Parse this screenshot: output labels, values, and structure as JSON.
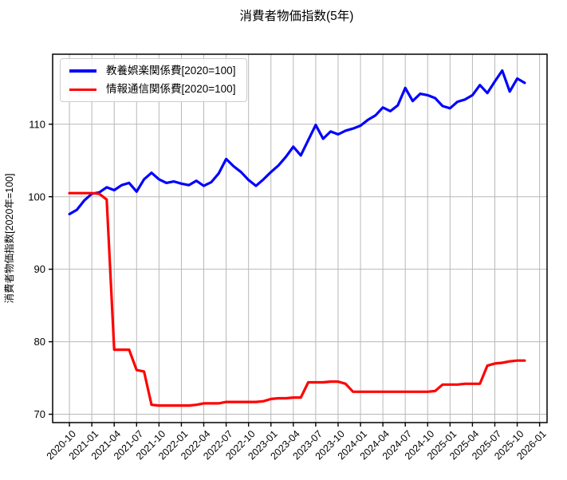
{
  "title": "消費者物価指数(5年)",
  "chart_data": {
    "type": "line",
    "title": "消費者物価指数(5年)",
    "xlabel": "",
    "ylabel": "消費者物価指数[2020年=100]",
    "grid": true,
    "legend_position": "upper left",
    "ylim": [
      68.85,
      119.65
    ],
    "xlim_months": [
      -2.25,
      64.0
    ],
    "y_ticks": [
      70,
      80,
      90,
      100,
      110
    ],
    "x_tick_labels": [
      "2020-10",
      "2021-01",
      "2021-04",
      "2021-07",
      "2021-10",
      "2022-01",
      "2022-04",
      "2022-07",
      "2022-10",
      "2023-01",
      "2023-04",
      "2023-07",
      "2023-10",
      "2024-01",
      "2024-04",
      "2024-07",
      "2024-10",
      "2025-01",
      "2025-04",
      "2025-07",
      "2025-10",
      "2026-01"
    ],
    "x": [
      "2020-10",
      "2020-11",
      "2020-12",
      "2021-01",
      "2021-02",
      "2021-03",
      "2021-04",
      "2021-05",
      "2021-06",
      "2021-07",
      "2021-08",
      "2021-09",
      "2021-10",
      "2021-11",
      "2021-12",
      "2022-01",
      "2022-02",
      "2022-03",
      "2022-04",
      "2022-05",
      "2022-06",
      "2022-07",
      "2022-08",
      "2022-09",
      "2022-10",
      "2022-11",
      "2022-12",
      "2023-01",
      "2023-02",
      "2023-03",
      "2023-04",
      "2023-05",
      "2023-06",
      "2023-07",
      "2023-08",
      "2023-09",
      "2023-10",
      "2023-11",
      "2023-12",
      "2024-01",
      "2024-02",
      "2024-03",
      "2024-04",
      "2024-05",
      "2024-06",
      "2024-07",
      "2024-08",
      "2024-09",
      "2024-10",
      "2024-11",
      "2024-12",
      "2025-01",
      "2025-02",
      "2025-03",
      "2025-04",
      "2025-05",
      "2025-06",
      "2025-07",
      "2025-08",
      "2025-09",
      "2025-10",
      "2025-11"
    ],
    "series": [
      {
        "name": "教養娯楽関係費[2020=100]",
        "color": "#0000ff",
        "values": [
          97.6,
          98.2,
          99.5,
          100.4,
          100.6,
          101.3,
          100.9,
          101.6,
          101.9,
          100.7,
          102.4,
          103.3,
          102.4,
          101.9,
          102.1,
          101.8,
          101.6,
          102.2,
          101.5,
          102.0,
          103.2,
          105.2,
          104.2,
          103.4,
          102.3,
          101.5,
          102.4,
          103.4,
          104.3,
          105.5,
          106.9,
          105.7,
          107.8,
          109.9,
          108.0,
          109.0,
          108.6,
          109.1,
          109.4,
          109.8,
          110.6,
          111.2,
          112.3,
          111.8,
          112.6,
          115.0,
          113.2,
          114.2,
          114.0,
          113.6,
          112.5,
          112.2,
          113.1,
          113.4,
          114.0,
          115.4,
          114.3,
          115.9,
          117.4,
          114.5,
          116.3,
          115.7
        ]
      },
      {
        "name": "情報通信関係費[2020=100]",
        "color": "#ff0000",
        "values": [
          100.5,
          100.5,
          100.5,
          100.5,
          100.4,
          99.6,
          78.9,
          78.9,
          78.9,
          76.1,
          75.9,
          71.3,
          71.2,
          71.2,
          71.2,
          71.2,
          71.2,
          71.3,
          71.5,
          71.5,
          71.5,
          71.7,
          71.7,
          71.7,
          71.7,
          71.7,
          71.8,
          72.1,
          72.2,
          72.2,
          72.3,
          72.3,
          74.4,
          74.4,
          74.4,
          74.5,
          74.5,
          74.2,
          73.1,
          73.1,
          73.1,
          73.1,
          73.1,
          73.1,
          73.1,
          73.1,
          73.1,
          73.1,
          73.1,
          73.2,
          74.1,
          74.1,
          74.1,
          74.2,
          74.2,
          74.2,
          76.7,
          77.0,
          77.1,
          77.3,
          77.4,
          77.4
        ]
      }
    ],
    "style": {
      "grid_color": "#b8b8b8",
      "spine_color": "#000000",
      "background": "#ffffff",
      "line_width": 3.2
    }
  }
}
